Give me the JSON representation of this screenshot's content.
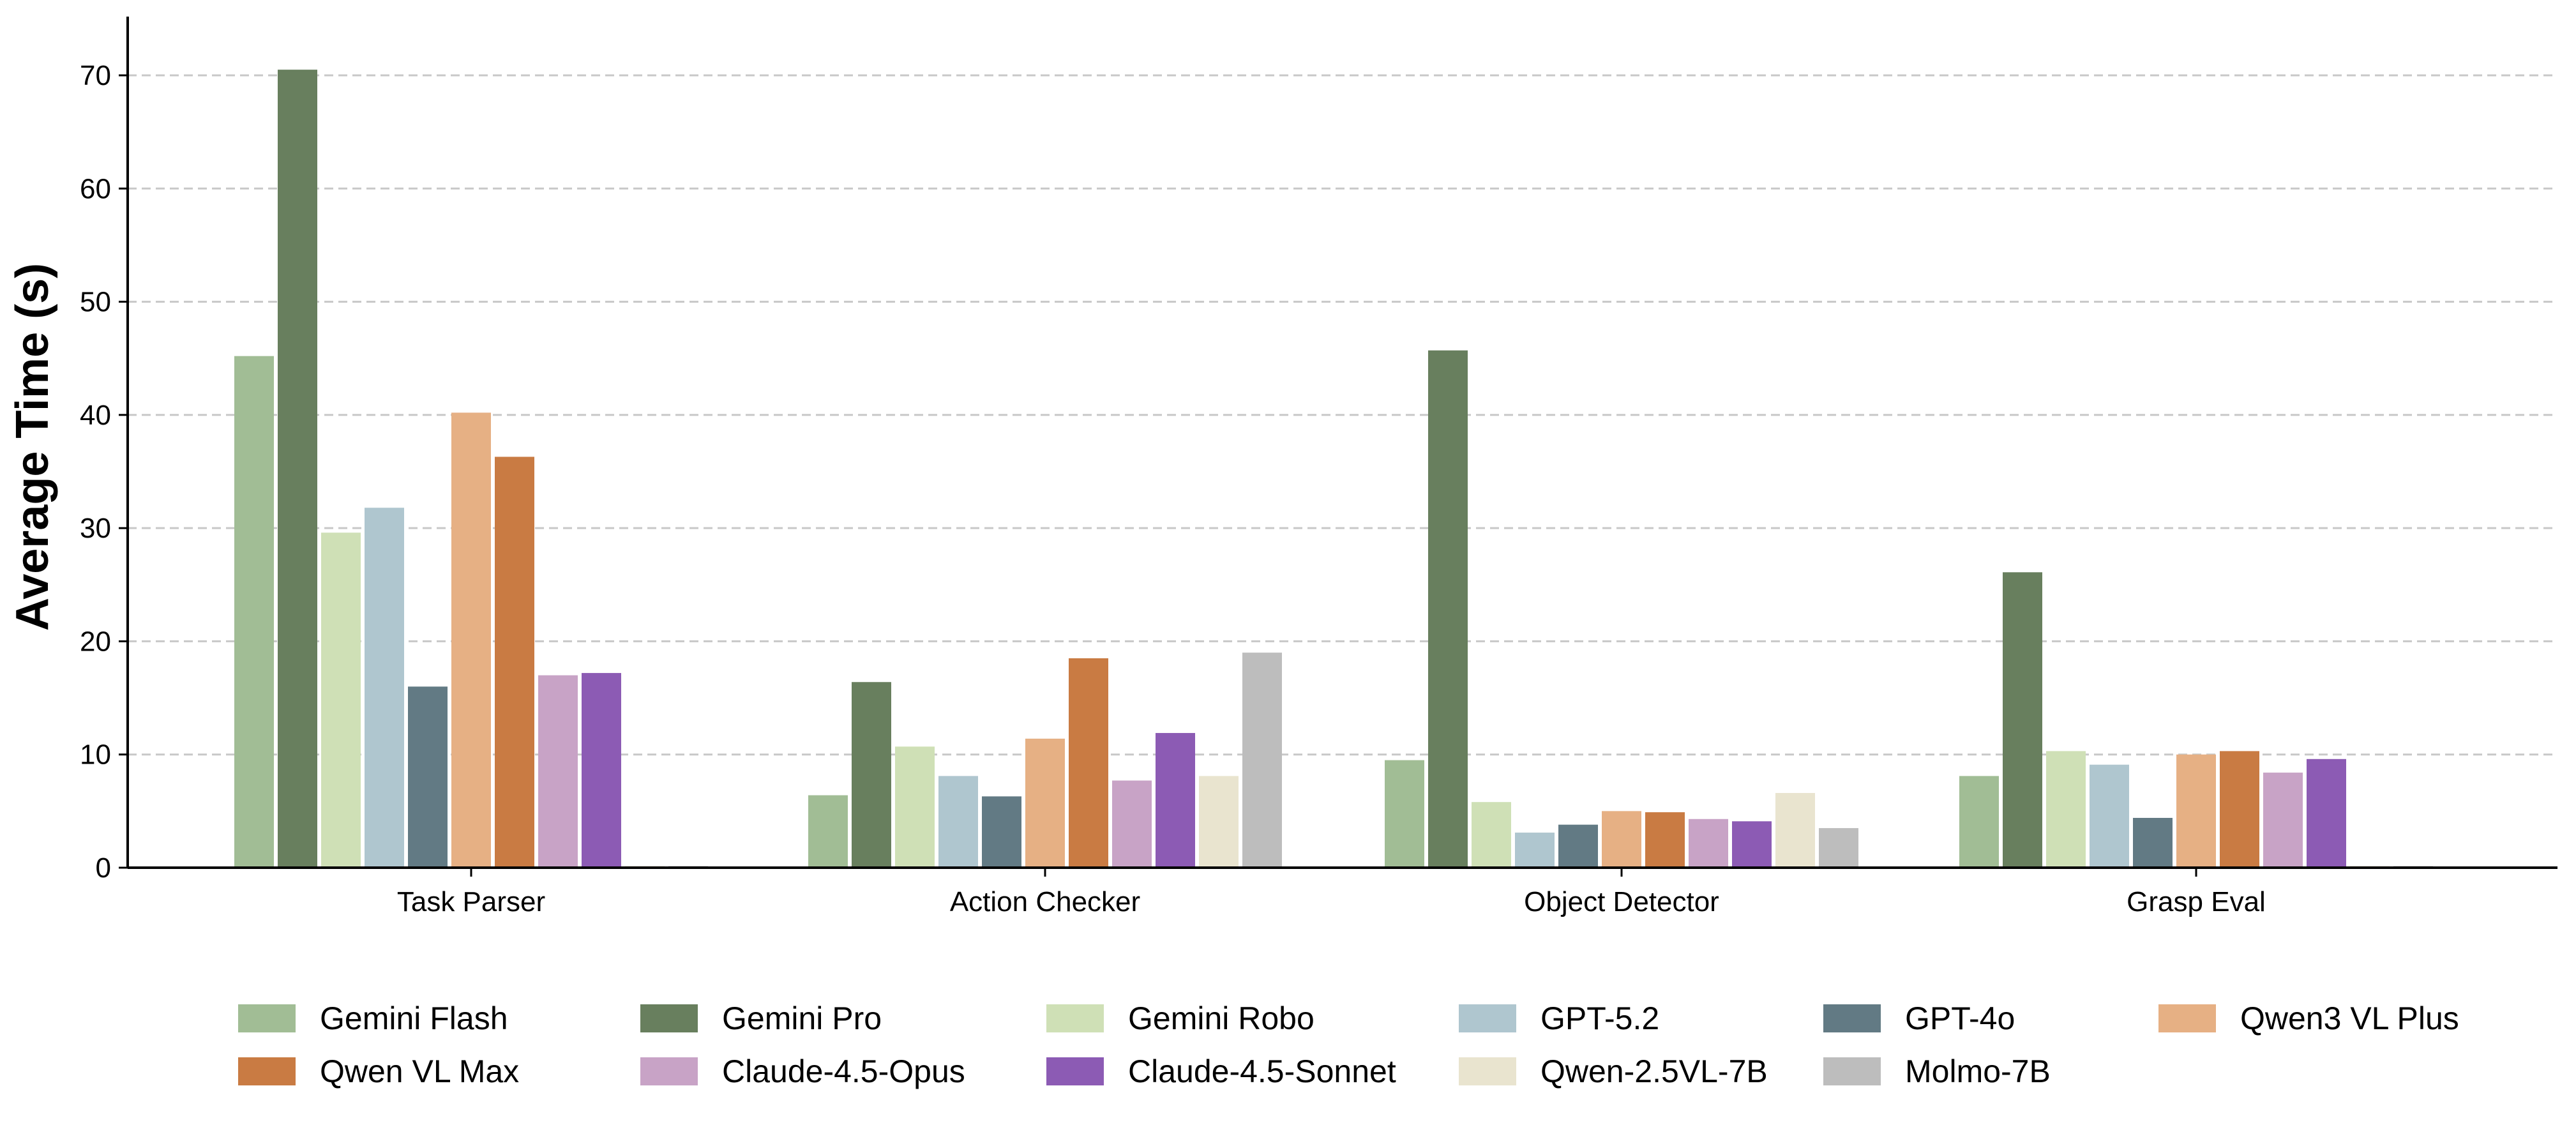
{
  "chart_data": {
    "type": "bar",
    "title": "",
    "xlabel": "",
    "ylabel": "Average Time (s)",
    "ylim": [
      0,
      75
    ],
    "yticks": [
      0,
      10,
      20,
      30,
      40,
      50,
      60,
      70
    ],
    "grid": "horizontal dashed",
    "legend_placement": "bottom",
    "categories": [
      "Task Parser",
      "Action Checker",
      "Object Detector",
      "Grasp Eval"
    ],
    "series": [
      {
        "name": "Gemini Flash",
        "color": "#a1bd95",
        "values": [
          45.2,
          6.4,
          9.5,
          8.1
        ]
      },
      {
        "name": "Gemini Pro",
        "color": "#687f5e",
        "values": [
          70.5,
          16.4,
          45.7,
          26.1
        ]
      },
      {
        "name": "Gemini Robo",
        "color": "#cfe0b6",
        "values": [
          29.6,
          10.7,
          5.8,
          10.3
        ]
      },
      {
        "name": "GPT-5.2",
        "color": "#afc6cf",
        "values": [
          31.8,
          8.1,
          3.1,
          9.1
        ]
      },
      {
        "name": "GPT-4o",
        "color": "#627a84",
        "values": [
          16.0,
          6.3,
          3.8,
          4.4
        ]
      },
      {
        "name": "Qwen3 VL Plus",
        "color": "#e6b084",
        "values": [
          40.2,
          11.4,
          5.0,
          10.0
        ]
      },
      {
        "name": "Qwen VL Max",
        "color": "#c97b43",
        "values": [
          36.3,
          18.5,
          4.9,
          10.3
        ]
      },
      {
        "name": "Claude-4.5-Opus",
        "color": "#c8a3c6",
        "values": [
          17.0,
          7.7,
          4.3,
          8.4
        ]
      },
      {
        "name": "Claude-4.5-Sonnet",
        "color": "#8c5bb4",
        "values": [
          17.2,
          11.9,
          4.1,
          9.6
        ]
      },
      {
        "name": "Qwen-2.5VL-7B",
        "color": "#e9e4cf",
        "values": [
          0,
          8.1,
          6.6,
          0
        ]
      },
      {
        "name": "Molmo-7B",
        "color": "#bdbdbd",
        "values": [
          0,
          19.0,
          3.5,
          0
        ]
      }
    ]
  }
}
